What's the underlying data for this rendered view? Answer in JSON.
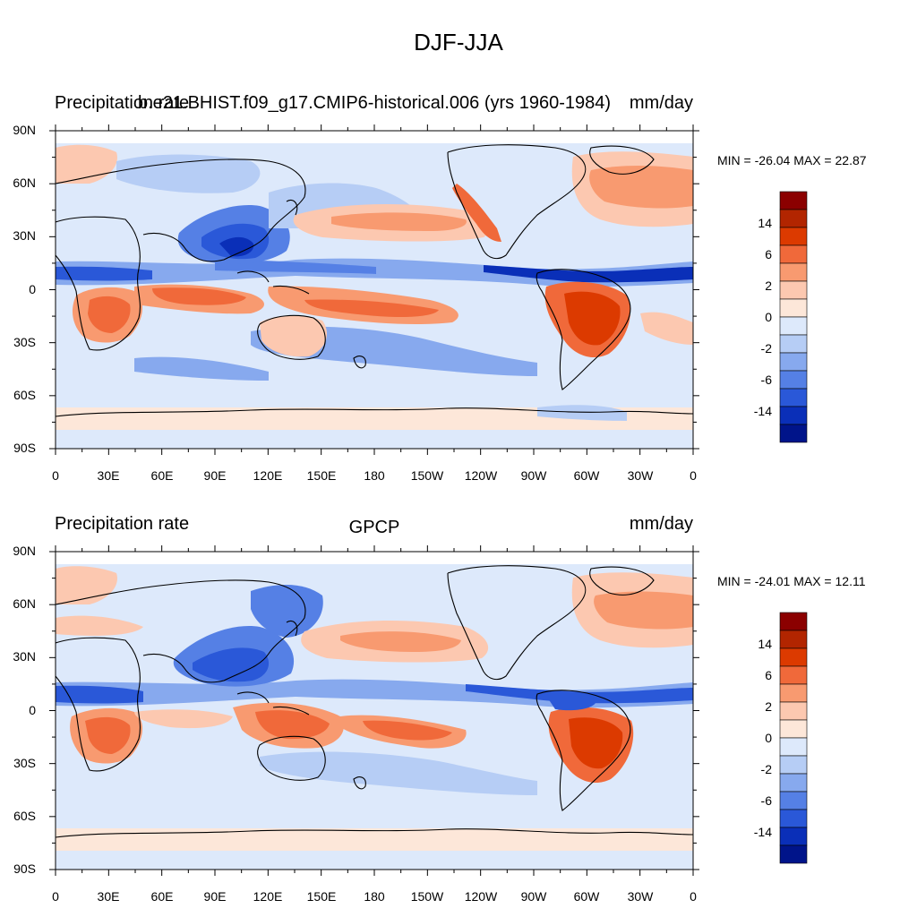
{
  "main_title": "DJF-JJA",
  "panels": [
    {
      "left_title": "Precipitation rate",
      "center_title": "b.e21.BHIST.f09_g17.CMIP6-historical.006 (yrs 1960-1984)",
      "right_title": "mm/day",
      "minmax": "MIN = -26.04 MAX =  22.87",
      "colorbar_labels": [
        "14",
        "6",
        "2",
        "0",
        "-2",
        "-6",
        "-14"
      ]
    },
    {
      "left_title": "Precipitation rate",
      "center_title": "GPCP",
      "right_title": "mm/day",
      "minmax": "MIN = -24.01 MAX =  12.11",
      "colorbar_labels": [
        "14",
        "6",
        "2",
        "0",
        "-2",
        "-6",
        "-14"
      ]
    }
  ],
  "lat_ticks": [
    "90N",
    "60N",
    "30N",
    "0",
    "30S",
    "60S",
    "90S"
  ],
  "lon_ticks": [
    "0",
    "30E",
    "60E",
    "90E",
    "120E",
    "150E",
    "180",
    "150W",
    "120W",
    "90W",
    "60W",
    "30W",
    "0"
  ],
  "colors": {
    "top_colorbar": [
      "#8b0000",
      "#b22500",
      "#dc3a00",
      "#f0693a",
      "#f89a70",
      "#fcc8b0",
      "#fde7d9",
      "#dde9fb",
      "#b6cdf5",
      "#87a9ee",
      "#5580e5",
      "#2a58d8",
      "#0a2fb8",
      "#00148a"
    ],
    "bottom_colorbar": [
      "#8b0000",
      "#b22500",
      "#dc3a00",
      "#f0693a",
      "#f89a70",
      "#fcc8b0",
      "#fde7d9",
      "#dde9fb",
      "#b6cdf5",
      "#87a9ee",
      "#5580e5",
      "#2a58d8",
      "#0a2fb8",
      "#00148a"
    ],
    "ocean_base": "#dde9fb",
    "coastline": "#000000"
  }
}
